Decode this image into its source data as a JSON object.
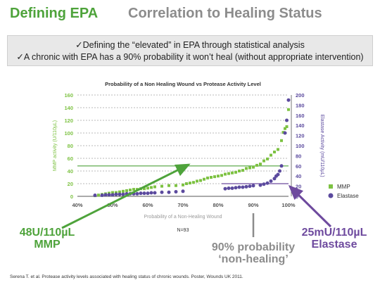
{
  "header": {
    "left_title": "Defining EPA",
    "right_title": "Correlation to Healing Status"
  },
  "banner": {
    "line1": "✓Defining the “elevated” in EPA through statistical analysis",
    "line2": "✓A chronic with EPA has a 90% probability it won’t heal (without appropriate intervention)"
  },
  "colors": {
    "mmp": "#7dc242",
    "elastase": "#5b4a9e",
    "accent_green": "#4ea33b",
    "accent_purple": "#6e4a9e",
    "gray": "#8c8c8c"
  },
  "chart_data": {
    "type": "scatter",
    "title": "Probability of a Non Healing Wound vs Protease Activity Level",
    "xlabel": "Probability of a Non-Healing Wound",
    "x_ticks": [
      "40%",
      "50%",
      "60%",
      "70%",
      "80%",
      "90%",
      "100%"
    ],
    "xlim": [
      40,
      100
    ],
    "y_left": {
      "label": "MMP activity (U/110µL)",
      "lim": [
        0,
        160
      ],
      "ticks": [
        "0",
        "20",
        "40",
        "60",
        "80",
        "100",
        "120",
        "140",
        "160"
      ]
    },
    "y_right": {
      "label": "Elastase Activity (mU/110µL)",
      "lim": [
        0,
        200
      ],
      "ticks": [
        "0",
        "20",
        "40",
        "60",
        "80",
        "100",
        "120",
        "140",
        "160",
        "180",
        "200"
      ]
    },
    "grid": "horizontal dashed",
    "legend": "right",
    "n_label": "N=93",
    "series": [
      {
        "name": "MMP",
        "axis": "left",
        "marker": "square",
        "x": [
          45,
          46,
          47,
          48,
          49,
          50,
          51,
          52,
          53,
          54,
          55,
          56,
          57,
          58,
          59,
          60,
          61,
          62,
          64,
          66,
          68,
          70,
          71,
          72,
          73,
          74,
          75,
          76,
          77,
          78,
          79,
          80,
          81,
          82,
          83,
          84,
          85,
          86,
          87,
          88,
          89,
          90,
          91,
          92,
          93,
          94,
          95,
          96,
          97,
          98,
          98.5,
          99,
          99.5,
          100
        ],
        "y": [
          1,
          2,
          3,
          4,
          5,
          6,
          6,
          7,
          8,
          9,
          10,
          11,
          11,
          12,
          12,
          13,
          14,
          15,
          16,
          17,
          17,
          18,
          20,
          21,
          22,
          24,
          25,
          27,
          29,
          30,
          31,
          32,
          33,
          35,
          36,
          37,
          38,
          40,
          41,
          44,
          45,
          46,
          49,
          51,
          56,
          59,
          65,
          70,
          74,
          88,
          101,
          107,
          110,
          137
        ]
      },
      {
        "name": "Elastase",
        "axis": "right",
        "marker": "circle",
        "x": [
          45,
          47,
          48,
          49,
          50,
          51,
          52,
          53,
          54,
          55,
          56,
          57,
          58,
          59,
          60,
          61,
          62,
          64,
          66,
          68,
          70,
          82,
          83,
          84,
          85,
          86,
          87,
          88,
          89,
          90,
          92,
          93,
          94,
          95,
          96,
          96.5,
          97,
          97.5,
          98,
          99,
          99.5,
          100
        ],
        "y": [
          2,
          2,
          3,
          3,
          3,
          4,
          4,
          4,
          5,
          5,
          5,
          5,
          6,
          6,
          6,
          7,
          7,
          8,
          8,
          9,
          10,
          15,
          16,
          16,
          17,
          18,
          18,
          19,
          20,
          21,
          22,
          24,
          26,
          30,
          35,
          40,
          43,
          50,
          60,
          125,
          150,
          190
        ]
      }
    ],
    "annotations": [
      {
        "text": "48U/110µL\nMMP",
        "color": "accent_green"
      },
      {
        "text": "90% probability\n‘non-healing’",
        "color": "gray"
      },
      {
        "text": "25mU/110µL\nElastase",
        "color": "accent_purple"
      }
    ]
  },
  "source": "Serena T. et al. Protease activity levels associated with healing status of chronic wounds. Poster, Wounds UK 2011."
}
